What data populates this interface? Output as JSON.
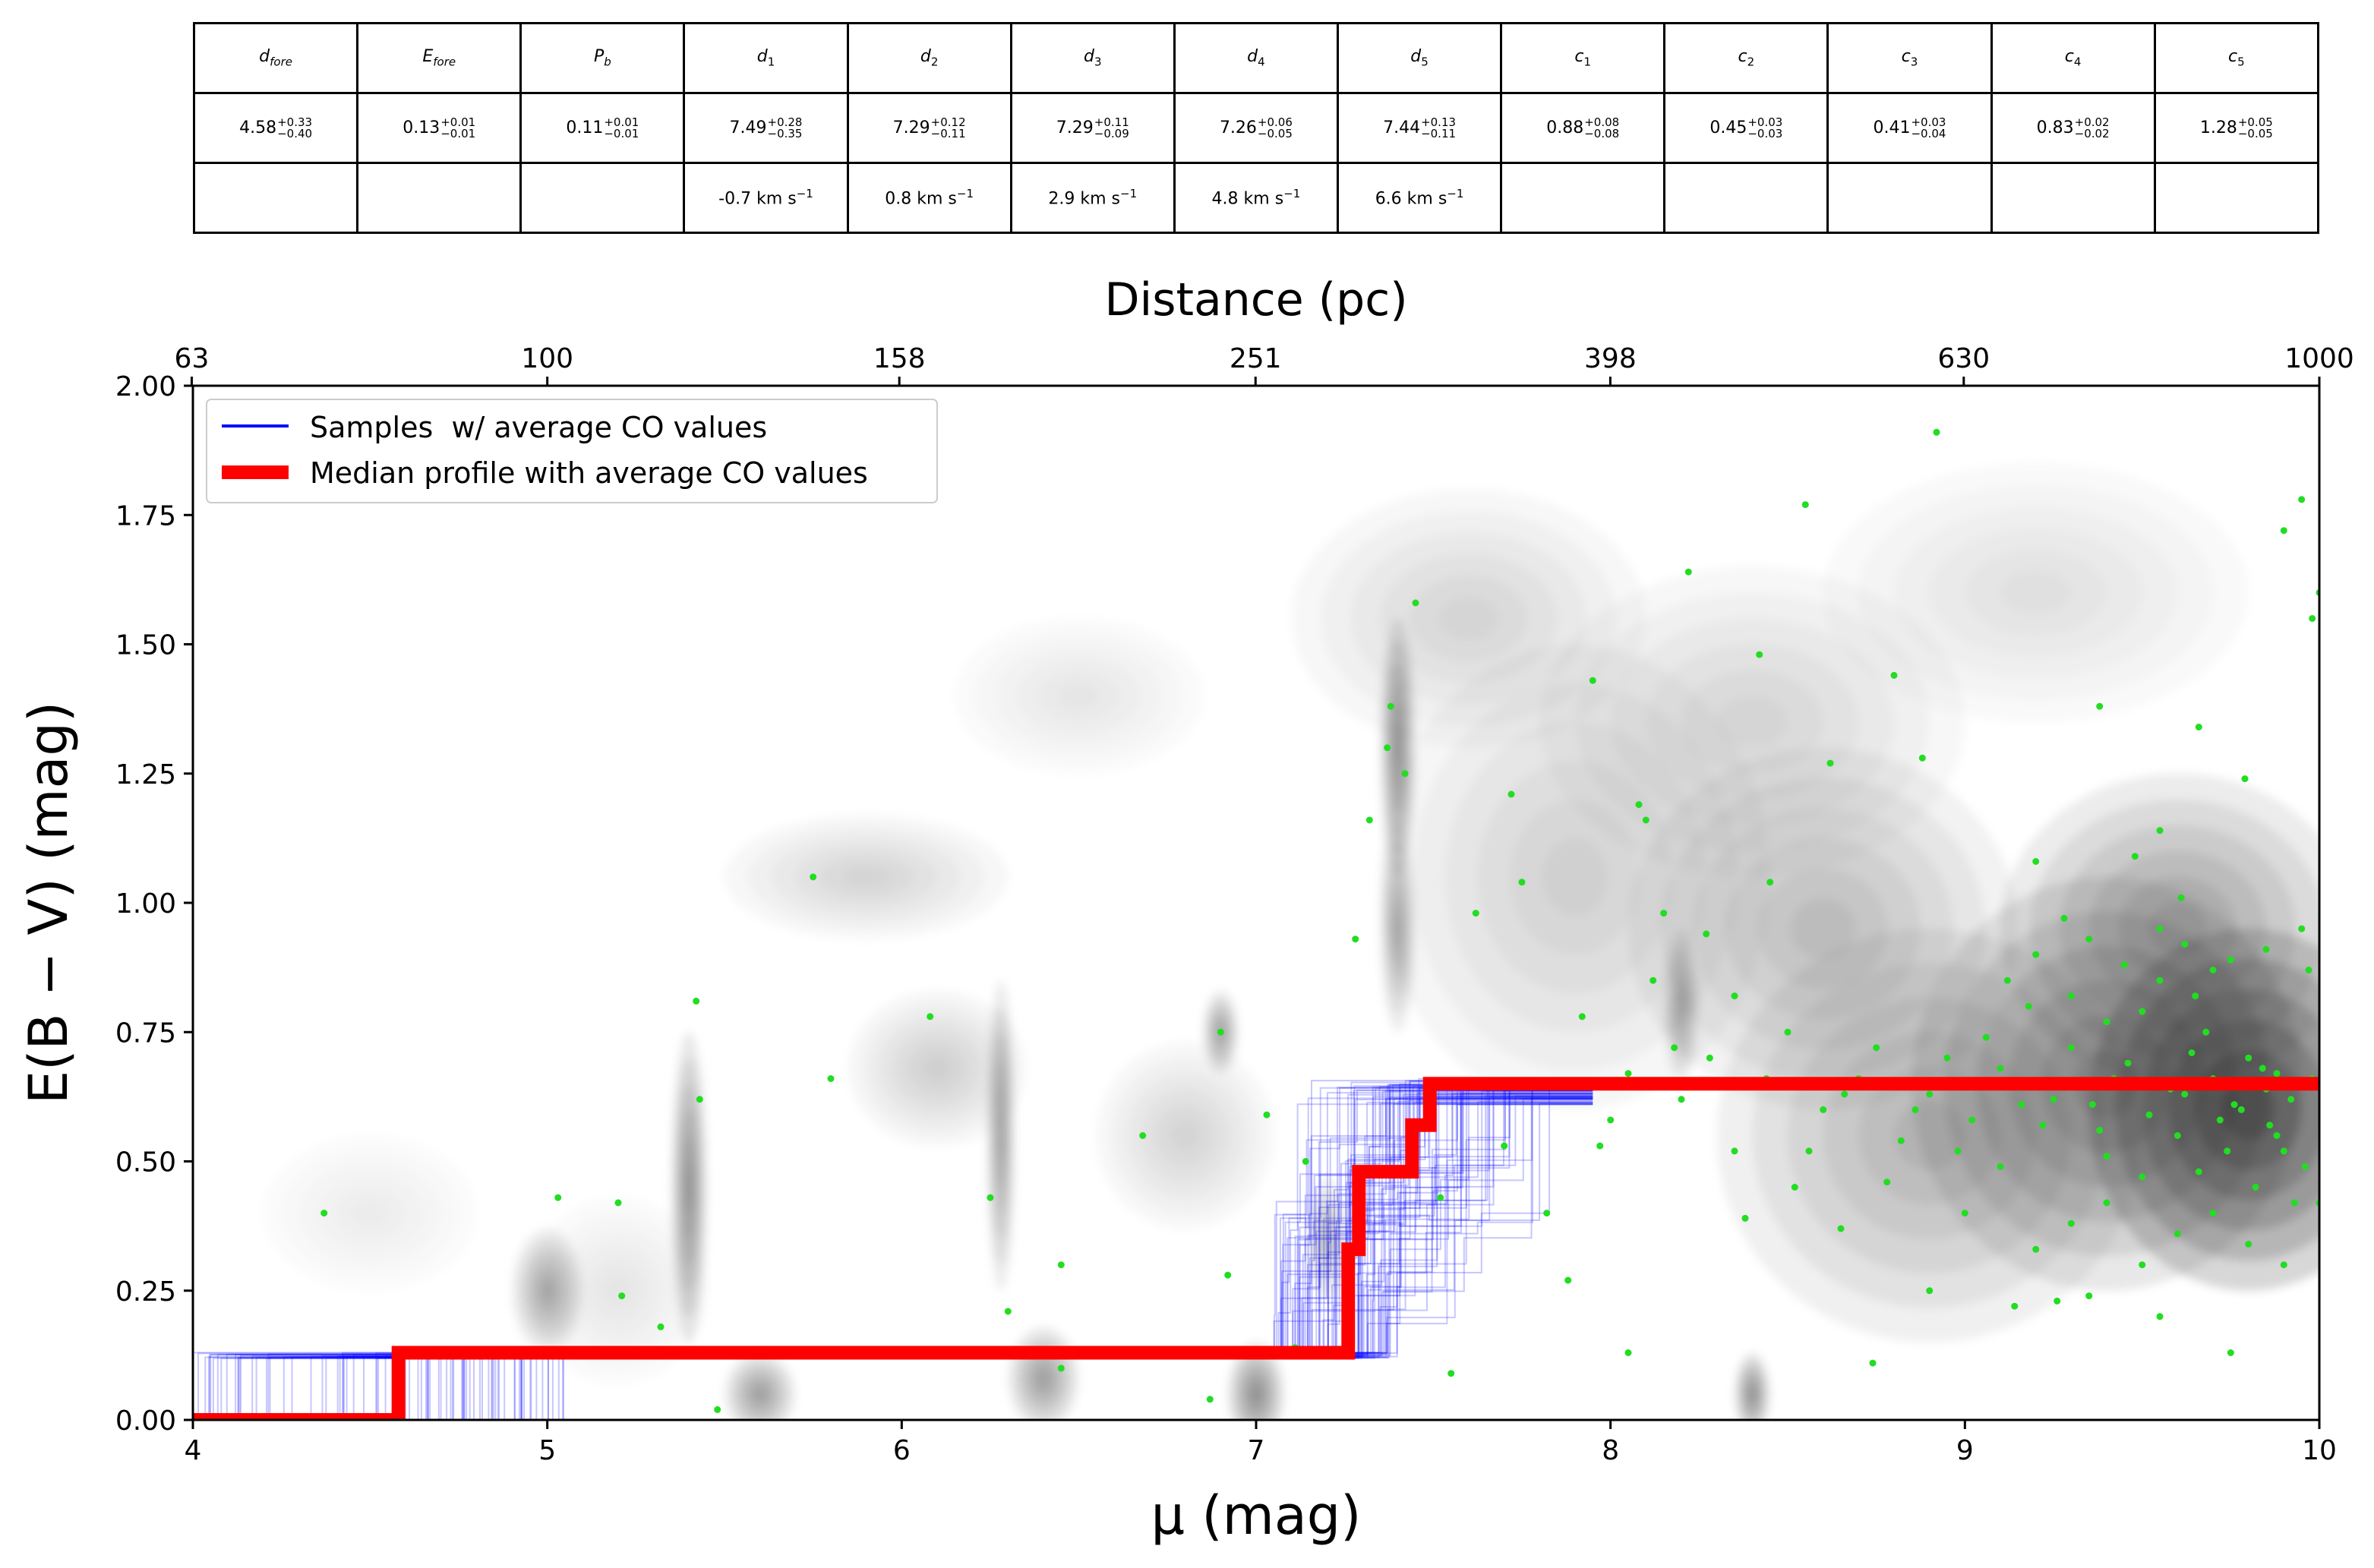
{
  "table": {
    "headers": [
      {
        "main": "d",
        "sub": "fore"
      },
      {
        "main": "E",
        "sub": "fore"
      },
      {
        "main": "P",
        "sub": "b"
      },
      {
        "main": "d",
        "sub": "1"
      },
      {
        "main": "d",
        "sub": "2"
      },
      {
        "main": "d",
        "sub": "3"
      },
      {
        "main": "d",
        "sub": "4"
      },
      {
        "main": "d",
        "sub": "5"
      },
      {
        "main": "c",
        "sub": "1"
      },
      {
        "main": "c",
        "sub": "2"
      },
      {
        "main": "c",
        "sub": "3"
      },
      {
        "main": "c",
        "sub": "4"
      },
      {
        "main": "c",
        "sub": "5"
      }
    ],
    "values": [
      {
        "v": "4.58",
        "up": "+0.33",
        "dn": "−0.40"
      },
      {
        "v": "0.13",
        "up": "+0.01",
        "dn": "−0.01"
      },
      {
        "v": "0.11",
        "up": "+0.01",
        "dn": "−0.01"
      },
      {
        "v": "7.49",
        "up": "+0.28",
        "dn": "−0.35"
      },
      {
        "v": "7.29",
        "up": "+0.12",
        "dn": "−0.11"
      },
      {
        "v": "7.29",
        "up": "+0.11",
        "dn": "−0.09"
      },
      {
        "v": "7.26",
        "up": "+0.06",
        "dn": "−0.05"
      },
      {
        "v": "7.44",
        "up": "+0.13",
        "dn": "−0.11"
      },
      {
        "v": "0.88",
        "up": "+0.08",
        "dn": "−0.08"
      },
      {
        "v": "0.45",
        "up": "+0.03",
        "dn": "−0.03"
      },
      {
        "v": "0.41",
        "up": "+0.03",
        "dn": "−0.04"
      },
      {
        "v": "0.83",
        "up": "+0.02",
        "dn": "−0.02"
      },
      {
        "v": "1.28",
        "up": "+0.05",
        "dn": "−0.05"
      }
    ],
    "velocities": [
      "",
      "",
      "",
      "-0.7 km s",
      "0.8 km s",
      "2.9 km s",
      "4.8 km s",
      "6.6 km s",
      "",
      "",
      "",
      "",
      ""
    ],
    "velocity_exp": "−1"
  },
  "chart_data": {
    "type": "line",
    "xlabel": "μ (mag)",
    "ylabel": "E(B − V) (mag)",
    "top_xlabel": "Distance (pc)",
    "xlim": [
      4,
      10
    ],
    "ylim": [
      0,
      2
    ],
    "x_ticks": [
      "4",
      "5",
      "6",
      "7",
      "8",
      "9",
      "10"
    ],
    "y_ticks": [
      "0.00",
      "0.25",
      "0.50",
      "0.75",
      "1.00",
      "1.25",
      "1.50",
      "1.75",
      "2.00"
    ],
    "top_ticks": [
      "63",
      "100",
      "158",
      "251",
      "398",
      "630",
      "1000"
    ],
    "legend_position": "top-left",
    "series": [
      {
        "name": "Samples  w/ average CO values",
        "color": "#0000ff",
        "description_steps": {
          "foreground_E": 0.13,
          "final_E": 0.64
        }
      },
      {
        "name": "Median profile with average CO values",
        "color": "#ff0000",
        "x": [
          4.0,
          4.58,
          4.58,
          7.26,
          7.26,
          7.29,
          7.29,
          7.44,
          7.44,
          7.49,
          7.49,
          10.0
        ],
        "y": [
          0.0,
          0.0,
          0.13,
          0.13,
          0.33,
          0.33,
          0.48,
          0.48,
          0.57,
          0.57,
          0.65,
          0.65
        ]
      }
    ],
    "stars": {
      "color": "#22dd22",
      "points": [
        [
          4.37,
          0.4
        ],
        [
          5.03,
          0.43
        ],
        [
          5.2,
          0.42
        ],
        [
          5.21,
          0.24
        ],
        [
          5.32,
          0.18
        ],
        [
          5.42,
          0.81
        ],
        [
          5.43,
          0.62
        ],
        [
          5.48,
          0.02
        ],
        [
          5.75,
          1.05
        ],
        [
          5.8,
          0.66
        ],
        [
          6.08,
          0.78
        ],
        [
          6.25,
          0.43
        ],
        [
          6.3,
          0.21
        ],
        [
          6.45,
          0.3
        ],
        [
          6.45,
          0.1
        ],
        [
          6.68,
          0.55
        ],
        [
          6.87,
          0.04
        ],
        [
          6.9,
          0.75
        ],
        [
          6.92,
          0.28
        ],
        [
          7.03,
          0.59
        ],
        [
          7.11,
          0.14
        ],
        [
          7.14,
          0.5
        ],
        [
          7.28,
          0.93
        ],
        [
          7.32,
          1.16
        ],
        [
          7.37,
          1.3
        ],
        [
          7.38,
          1.38
        ],
        [
          7.42,
          1.25
        ],
        [
          7.45,
          1.58
        ],
        [
          7.52,
          0.43
        ],
        [
          7.55,
          0.09
        ],
        [
          7.62,
          0.98
        ],
        [
          7.7,
          0.53
        ],
        [
          7.72,
          1.21
        ],
        [
          7.75,
          1.04
        ],
        [
          7.82,
          0.4
        ],
        [
          7.88,
          0.27
        ],
        [
          7.92,
          0.78
        ],
        [
          7.95,
          1.43
        ],
        [
          7.97,
          0.53
        ],
        [
          8.05,
          0.13
        ],
        [
          8.08,
          1.19
        ],
        [
          8.1,
          1.16
        ],
        [
          8.15,
          0.98
        ],
        [
          8.18,
          0.72
        ],
        [
          8.22,
          1.64
        ],
        [
          8.27,
          0.94
        ],
        [
          8.35,
          0.82
        ],
        [
          8.38,
          0.39
        ],
        [
          8.42,
          1.48
        ],
        [
          8.45,
          1.04
        ],
        [
          8.52,
          0.45
        ],
        [
          8.55,
          1.77
        ],
        [
          8.62,
          1.27
        ],
        [
          8.65,
          0.37
        ],
        [
          8.74,
          0.11
        ],
        [
          8.8,
          1.44
        ],
        [
          8.88,
          1.28
        ],
        [
          8.92,
          1.91
        ],
        [
          9.1,
          0.49
        ],
        [
          9.14,
          0.22
        ],
        [
          9.2,
          1.08
        ],
        [
          9.26,
          0.23
        ],
        [
          9.28,
          0.97
        ],
        [
          9.36,
          0.61
        ],
        [
          9.38,
          1.38
        ],
        [
          9.48,
          1.09
        ],
        [
          9.55,
          1.14
        ],
        [
          9.61,
          1.01
        ],
        [
          9.66,
          1.34
        ],
        [
          9.75,
          0.13
        ],
        [
          9.79,
          1.24
        ],
        [
          9.88,
          0.67
        ],
        [
          9.9,
          1.72
        ],
        [
          9.95,
          1.78
        ],
        [
          9.98,
          1.55
        ],
        [
          10.0,
          1.6
        ],
        [
          9.97,
          0.87
        ],
        [
          9.9,
          0.52
        ],
        [
          9.85,
          0.64
        ],
        [
          9.8,
          0.7
        ],
        [
          9.72,
          0.58
        ],
        [
          9.68,
          0.75
        ],
        [
          9.6,
          0.55
        ],
        [
          9.55,
          0.85
        ],
        [
          9.5,
          0.47
        ],
        [
          9.42,
          0.66
        ],
        [
          9.38,
          0.56
        ],
        [
          9.3,
          0.72
        ],
        [
          9.25,
          0.62
        ],
        [
          9.18,
          0.8
        ],
        [
          9.1,
          0.68
        ],
        [
          9.02,
          0.58
        ],
        [
          8.95,
          0.7
        ],
        [
          8.9,
          0.63
        ],
        [
          8.82,
          0.54
        ],
        [
          8.75,
          0.72
        ],
        [
          8.7,
          0.66
        ],
        [
          8.6,
          0.6
        ],
        [
          8.5,
          0.75
        ],
        [
          8.44,
          0.66
        ],
        [
          8.35,
          0.52
        ],
        [
          8.28,
          0.7
        ],
        [
          8.2,
          0.62
        ],
        [
          8.12,
          0.85
        ],
        [
          8.05,
          0.67
        ],
        [
          8.0,
          0.58
        ],
        [
          9.62,
          0.63
        ],
        [
          9.66,
          0.48
        ],
        [
          9.7,
          0.66
        ],
        [
          9.74,
          0.52
        ],
        [
          9.78,
          0.6
        ],
        [
          9.82,
          0.45
        ],
        [
          9.86,
          0.57
        ],
        [
          9.92,
          0.62
        ],
        [
          9.96,
          0.49
        ],
        [
          9.98,
          0.66
        ],
        [
          9.93,
          0.42
        ],
        [
          9.88,
          0.55
        ],
        [
          9.84,
          0.68
        ],
        [
          9.76,
          0.61
        ],
        [
          9.64,
          0.71
        ],
        [
          9.58,
          0.64
        ],
        [
          9.52,
          0.59
        ],
        [
          9.46,
          0.69
        ],
        [
          9.4,
          0.51
        ],
        [
          9.34,
          0.65
        ],
        [
          9.22,
          0.57
        ],
        [
          9.16,
          0.61
        ],
        [
          9.06,
          0.74
        ],
        [
          8.98,
          0.52
        ],
        [
          8.86,
          0.6
        ],
        [
          8.78,
          0.46
        ],
        [
          8.66,
          0.63
        ],
        [
          8.56,
          0.52
        ],
        [
          9.7,
          0.87
        ],
        [
          9.62,
          0.92
        ],
        [
          9.55,
          0.95
        ],
        [
          9.45,
          0.88
        ],
        [
          9.35,
          0.93
        ],
        [
          9.3,
          0.82
        ],
        [
          9.2,
          0.9
        ],
        [
          9.12,
          0.85
        ],
        [
          9.4,
          0.77
        ],
        [
          9.5,
          0.79
        ],
        [
          9.65,
          0.82
        ],
        [
          9.75,
          0.89
        ],
        [
          9.85,
          0.91
        ],
        [
          9.95,
          0.95
        ],
        [
          9.6,
          0.36
        ],
        [
          9.7,
          0.4
        ],
        [
          9.8,
          0.34
        ],
        [
          9.5,
          0.3
        ],
        [
          9.4,
          0.42
        ],
        [
          9.3,
          0.38
        ],
        [
          9.2,
          0.33
        ],
        [
          9.0,
          0.4
        ],
        [
          8.9,
          0.25
        ],
        [
          9.9,
          0.3
        ],
        [
          10.0,
          0.42
        ],
        [
          9.55,
          0.2
        ],
        [
          9.35,
          0.24
        ]
      ]
    },
    "background": {
      "description": "grayscale stellar density map",
      "blobs": [
        [
          9.8,
          0.6,
          0.45,
          0.35,
          0.95
        ],
        [
          9.4,
          0.65,
          0.55,
          0.4,
          0.55
        ],
        [
          9.6,
          0.95,
          0.5,
          0.3,
          0.45
        ],
        [
          8.9,
          0.55,
          0.6,
          0.4,
          0.35
        ],
        [
          8.6,
          0.95,
          0.55,
          0.35,
          0.3
        ],
        [
          8.4,
          1.35,
          0.6,
          0.3,
          0.18
        ],
        [
          7.9,
          1.05,
          0.55,
          0.45,
          0.22
        ],
        [
          7.6,
          1.55,
          0.5,
          0.25,
          0.18
        ],
        [
          9.2,
          1.6,
          0.6,
          0.25,
          0.15
        ],
        [
          7.4,
          1.3,
          0.05,
          0.25,
          0.55
        ],
        [
          7.4,
          0.95,
          0.05,
          0.2,
          0.4
        ],
        [
          5.9,
          1.05,
          0.4,
          0.12,
          0.18
        ],
        [
          6.5,
          1.4,
          0.35,
          0.15,
          0.12
        ],
        [
          6.1,
          0.68,
          0.25,
          0.15,
          0.22
        ],
        [
          6.8,
          0.55,
          0.25,
          0.18,
          0.18
        ],
        [
          5.4,
          0.45,
          0.05,
          0.3,
          0.55
        ],
        [
          6.28,
          0.55,
          0.04,
          0.3,
          0.45
        ],
        [
          6.9,
          0.75,
          0.05,
          0.08,
          0.45
        ],
        [
          5.0,
          0.25,
          0.1,
          0.12,
          0.4
        ],
        [
          5.6,
          0.05,
          0.1,
          0.08,
          0.45
        ],
        [
          6.4,
          0.08,
          0.1,
          0.1,
          0.45
        ],
        [
          7.0,
          0.05,
          0.08,
          0.1,
          0.55
        ],
        [
          7.2,
          0.35,
          0.06,
          0.12,
          0.3
        ],
        [
          8.2,
          0.8,
          0.05,
          0.15,
          0.35
        ],
        [
          8.4,
          0.05,
          0.05,
          0.08,
          0.55
        ],
        [
          4.5,
          0.4,
          0.3,
          0.15,
          0.1
        ],
        [
          5.2,
          0.25,
          0.25,
          0.18,
          0.12
        ]
      ]
    }
  }
}
